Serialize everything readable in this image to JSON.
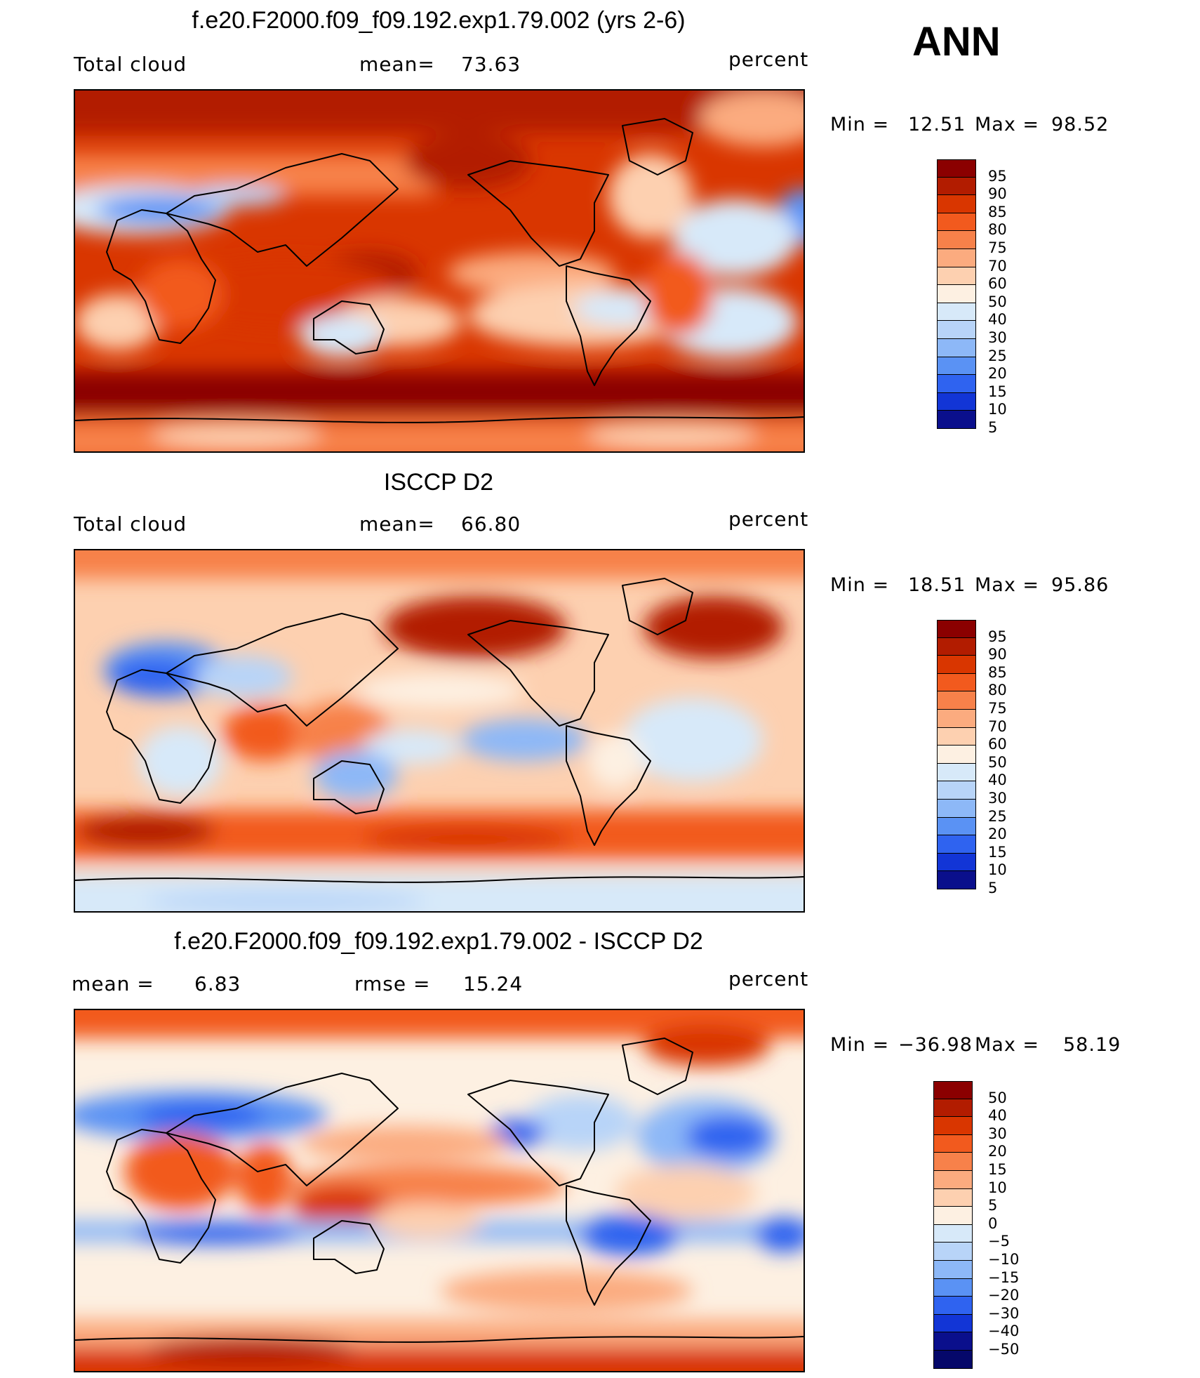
{
  "season": "ANN",
  "panels": [
    {
      "id": "model",
      "title": "f.e20.F2000.f09_f09.192.exp1.79.002 (yrs 2-6)",
      "left_label": "Total cloud",
      "mid_label": "mean=",
      "mid_value": "73.63",
      "right_label": "percent",
      "min_label": "Min =",
      "min_value": "12.51",
      "max_label": "Max =",
      "max_value": "98.52",
      "levels": [
        "95",
        "90",
        "85",
        "80",
        "75",
        "70",
        "60",
        "50",
        "40",
        "30",
        "25",
        "20",
        "15",
        "10",
        "5"
      ],
      "colors": [
        "#8b0000",
        "#b21c00",
        "#d93600",
        "#f25a1e",
        "#f7814a",
        "#fbab7f",
        "#fdd0b0",
        "#fdf0e2",
        "#d7e9f9",
        "#b8d4f8",
        "#8db8f7",
        "#5a92f4",
        "#2f63f0",
        "#1235d6",
        "#0a0f8c"
      ]
    },
    {
      "id": "obs",
      "title": "ISCCP D2",
      "left_label": "Total cloud",
      "mid_label": "mean=",
      "mid_value": "66.80",
      "right_label": "percent",
      "min_label": "Min =",
      "min_value": "18.51",
      "max_label": "Max =",
      "max_value": "95.86",
      "levels": [
        "95",
        "90",
        "85",
        "80",
        "75",
        "70",
        "60",
        "50",
        "40",
        "30",
        "25",
        "20",
        "15",
        "10",
        "5"
      ],
      "colors": [
        "#8b0000",
        "#b21c00",
        "#d93600",
        "#f25a1e",
        "#f7814a",
        "#fbab7f",
        "#fdd0b0",
        "#fdf0e2",
        "#d7e9f9",
        "#b8d4f8",
        "#8db8f7",
        "#5a92f4",
        "#2f63f0",
        "#1235d6",
        "#0a0f8c"
      ]
    },
    {
      "id": "diff",
      "title": "f.e20.F2000.f09_f09.192.exp1.79.002 - ISCCP D2",
      "left_label": "mean =",
      "left_value": "6.83",
      "mid_label": "rmse =",
      "mid_value": "15.24",
      "right_label": "percent",
      "min_label": "Min =",
      "min_value": "−36.98",
      "max_label": "Max =",
      "max_value": "58.19",
      "levels": [
        "50",
        "40",
        "30",
        "20",
        "15",
        "10",
        "5",
        "0",
        "−5",
        "−10",
        "−15",
        "−20",
        "−30",
        "−40",
        "−50"
      ],
      "colors": [
        "#8b0000",
        "#b21c00",
        "#d93600",
        "#f25a1e",
        "#f7814a",
        "#fbab7f",
        "#fdd0b0",
        "#fdf0e2",
        "#d7e9f9",
        "#b8d4f8",
        "#8db8f7",
        "#5a92f4",
        "#2f63f0",
        "#1235d6",
        "#0a0f8c",
        "#05086a"
      ]
    }
  ]
}
